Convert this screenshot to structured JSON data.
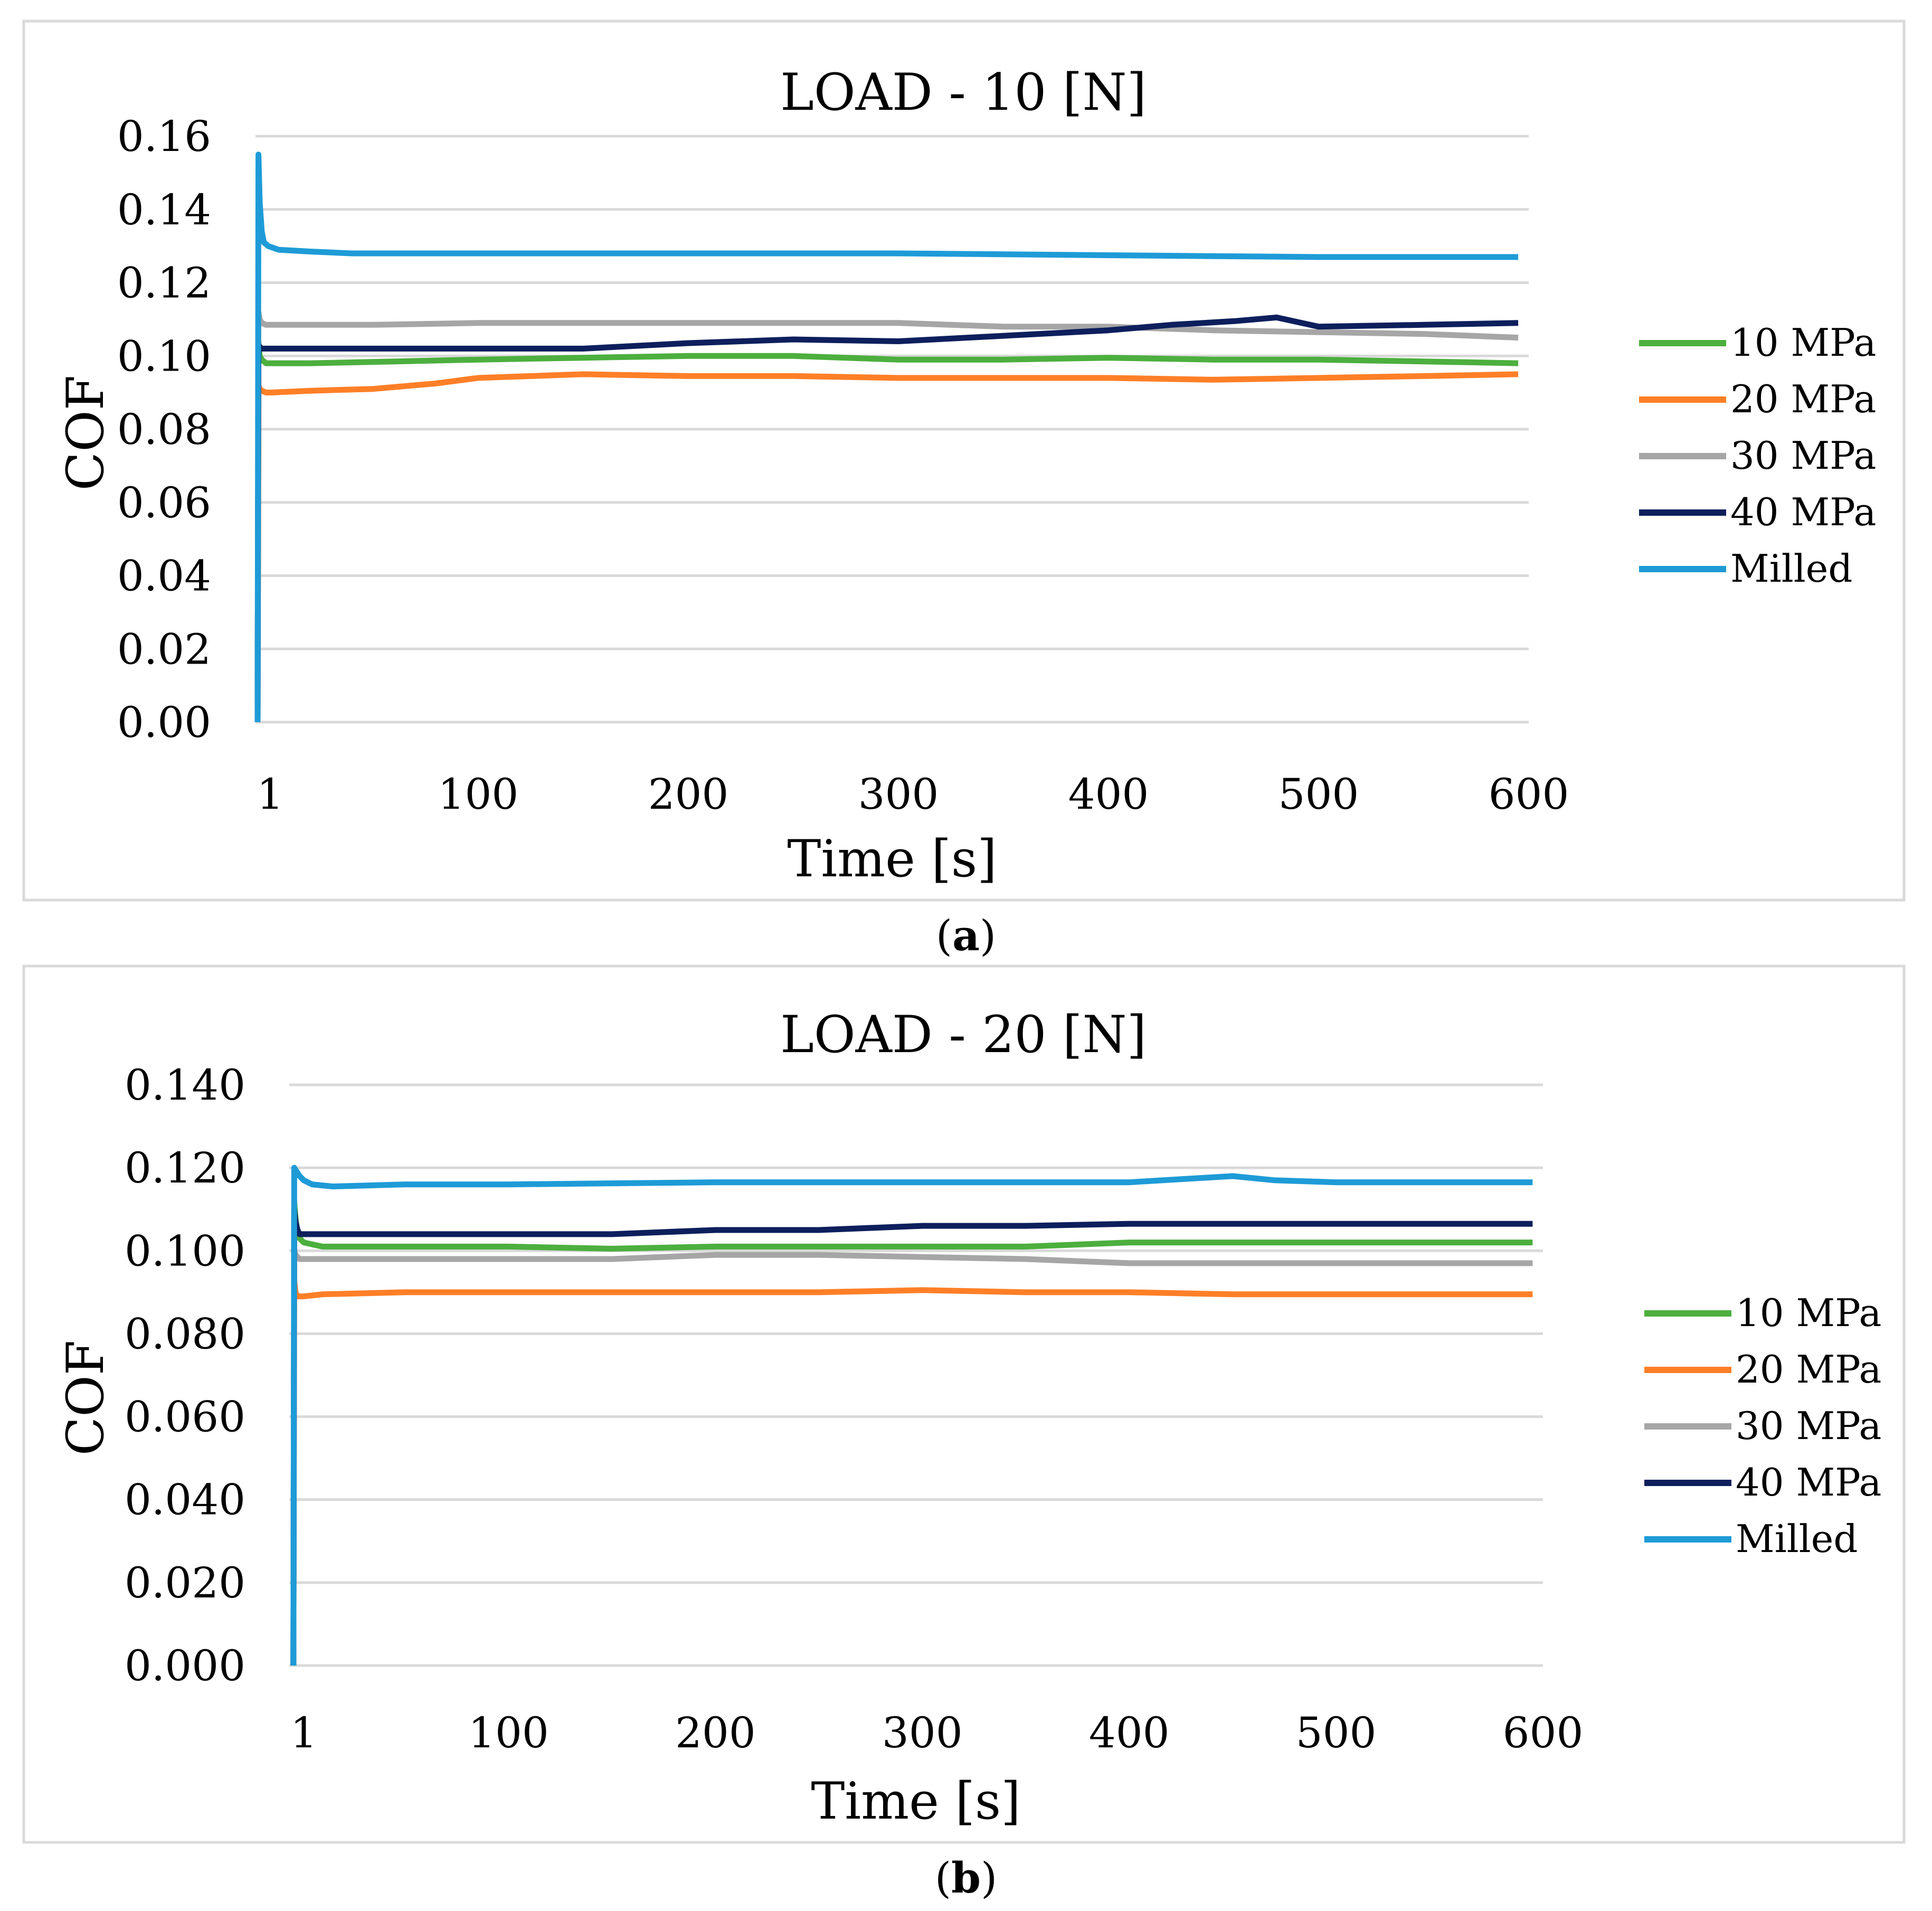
{
  "chart_data": [
    {
      "type": "line",
      "title": "LOAD - 10 [N]",
      "xlabel": "Time [s]",
      "ylabel": "COF",
      "xlim": [
        -6,
        600
      ],
      "ylim": [
        0,
        0.16
      ],
      "x_ticks": [
        1,
        100,
        200,
        300,
        400,
        500,
        600
      ],
      "x_tick_labels": [
        "1",
        "100",
        "200",
        "300",
        "400",
        "500",
        "600"
      ],
      "y_ticks": [
        0,
        0.02,
        0.04,
        0.06,
        0.08,
        0.1,
        0.12,
        0.14,
        0.16
      ],
      "y_tick_labels": [
        "0.00",
        "0.02",
        "0.04",
        "0.06",
        "0.08",
        "0.10",
        "0.12",
        "0.14",
        "0.16"
      ],
      "grid": true,
      "legend": "right",
      "caption": "a",
      "series": [
        {
          "name": "10 MPa",
          "color": "#4caf3e",
          "x": [
            -5,
            -4.6,
            -4,
            -3,
            -1,
            1,
            20,
            60,
            100,
            150,
            200,
            250,
            300,
            350,
            400,
            450,
            500,
            550,
            595
          ],
          "y": [
            0,
            0.104,
            0.1,
            0.099,
            0.098,
            0.098,
            0.098,
            0.0985,
            0.099,
            0.0995,
            0.1,
            0.1,
            0.099,
            0.099,
            0.0995,
            0.099,
            0.099,
            0.0985,
            0.098
          ]
        },
        {
          "name": "20 MPa",
          "color": "#ff7f27",
          "x": [
            -5,
            -4.6,
            -4,
            -3,
            -1,
            1,
            20,
            50,
            80,
            100,
            150,
            200,
            250,
            300,
            350,
            400,
            450,
            500,
            550,
            595
          ],
          "y": [
            0,
            0.092,
            0.091,
            0.0905,
            0.09,
            0.09,
            0.0905,
            0.091,
            0.0925,
            0.094,
            0.095,
            0.0945,
            0.0945,
            0.094,
            0.094,
            0.094,
            0.0935,
            0.094,
            0.0945,
            0.095
          ]
        },
        {
          "name": "30 MPa",
          "color": "#a6a6a6",
          "x": [
            -5,
            -4.6,
            -4,
            -3,
            -1,
            1,
            50,
            100,
            150,
            200,
            250,
            300,
            350,
            400,
            450,
            500,
            550,
            595
          ],
          "y": [
            0,
            0.112,
            0.11,
            0.109,
            0.1085,
            0.1085,
            0.1085,
            0.109,
            0.109,
            0.109,
            0.109,
            0.109,
            0.108,
            0.108,
            0.107,
            0.1065,
            0.106,
            0.105
          ]
        },
        {
          "name": "40 MPa",
          "color": "#0d1f5c",
          "x": [
            -5,
            -4.6,
            -4,
            -3,
            -1,
            1,
            50,
            100,
            150,
            200,
            250,
            300,
            350,
            400,
            430,
            460,
            480,
            500,
            550,
            595
          ],
          "y": [
            0,
            0.103,
            0.1025,
            0.102,
            0.102,
            0.102,
            0.102,
            0.102,
            0.102,
            0.1035,
            0.1045,
            0.104,
            0.1055,
            0.107,
            0.1085,
            0.1095,
            0.1105,
            0.108,
            0.1085,
            0.109
          ]
        },
        {
          "name": "Milled",
          "color": "#1e9bd7",
          "x": [
            -5,
            -4.6,
            -4,
            -3,
            -2,
            0,
            5,
            20,
            40,
            80,
            150,
            200,
            250,
            300,
            400,
            500,
            550,
            595
          ],
          "y": [
            0,
            0.155,
            0.142,
            0.134,
            0.131,
            0.13,
            0.129,
            0.1285,
            0.128,
            0.128,
            0.128,
            0.128,
            0.128,
            0.128,
            0.1275,
            0.127,
            0.127,
            0.127
          ]
        }
      ]
    },
    {
      "type": "line",
      "title": "LOAD - 20 [N]",
      "xlabel": "Time [s]",
      "ylabel": "COF",
      "xlim": [
        -6,
        600
      ],
      "ylim": [
        0,
        0.14
      ],
      "x_ticks": [
        1,
        100,
        200,
        300,
        400,
        500,
        600
      ],
      "x_tick_labels": [
        "1",
        "100",
        "200",
        "300",
        "400",
        "500",
        "600"
      ],
      "y_ticks": [
        0,
        0.02,
        0.04,
        0.06,
        0.08,
        0.1,
        0.12,
        0.14
      ],
      "y_tick_labels": [
        "0.000",
        "0.020",
        "0.040",
        "0.060",
        "0.080",
        "0.100",
        "0.120",
        "0.140"
      ],
      "grid": true,
      "legend": "right",
      "caption": "b",
      "series": [
        {
          "name": "10 MPa",
          "color": "#4caf3e",
          "x": [
            -4,
            -3.6,
            -3,
            -2,
            -1,
            1,
            10,
            30,
            60,
            100,
            150,
            200,
            240,
            300,
            350,
            400,
            450,
            500,
            550,
            595
          ],
          "y": [
            0,
            0.112,
            0.108,
            0.104,
            0.103,
            0.102,
            0.101,
            0.101,
            0.101,
            0.101,
            0.1005,
            0.101,
            0.101,
            0.101,
            0.101,
            0.102,
            0.102,
            0.102,
            0.102,
            0.102
          ]
        },
        {
          "name": "20 MPa",
          "color": "#ff7f27",
          "x": [
            -4,
            -3.6,
            -3,
            -2,
            -1,
            1,
            10,
            50,
            100,
            150,
            200,
            250,
            300,
            350,
            400,
            450,
            500,
            550,
            595
          ],
          "y": [
            0,
            0.093,
            0.09,
            0.089,
            0.089,
            0.089,
            0.0895,
            0.09,
            0.09,
            0.09,
            0.09,
            0.09,
            0.0905,
            0.09,
            0.09,
            0.0895,
            0.0895,
            0.0895,
            0.0895
          ]
        },
        {
          "name": "30 MPa",
          "color": "#a6a6a6",
          "x": [
            -4,
            -3.6,
            -3,
            -2,
            -1,
            1,
            10,
            50,
            100,
            150,
            200,
            250,
            300,
            350,
            400,
            450,
            500,
            550,
            595
          ],
          "y": [
            0,
            0.1,
            0.099,
            0.0985,
            0.098,
            0.098,
            0.098,
            0.098,
            0.098,
            0.098,
            0.099,
            0.099,
            0.0985,
            0.098,
            0.097,
            0.097,
            0.097,
            0.097,
            0.097
          ]
        },
        {
          "name": "40 MPa",
          "color": "#0d1f5c",
          "x": [
            -4,
            -3.6,
            -3,
            -2,
            -1,
            1,
            10,
            50,
            100,
            150,
            200,
            250,
            300,
            350,
            400,
            450,
            500,
            550,
            595
          ],
          "y": [
            0,
            0.11,
            0.107,
            0.105,
            0.104,
            0.104,
            0.104,
            0.104,
            0.104,
            0.104,
            0.105,
            0.105,
            0.106,
            0.106,
            0.1065,
            0.1065,
            0.1065,
            0.1065,
            0.1065
          ]
        },
        {
          "name": "Milled",
          "color": "#1e9bd7",
          "x": [
            -4,
            -3.6,
            -3,
            -1,
            1,
            5,
            15,
            50,
            100,
            200,
            300,
            400,
            450,
            470,
            500,
            550,
            595
          ],
          "y": [
            0,
            0.12,
            0.1195,
            0.118,
            0.117,
            0.116,
            0.1155,
            0.116,
            0.116,
            0.1165,
            0.1165,
            0.1165,
            0.118,
            0.117,
            0.1165,
            0.1165,
            0.1165
          ]
        }
      ]
    }
  ]
}
